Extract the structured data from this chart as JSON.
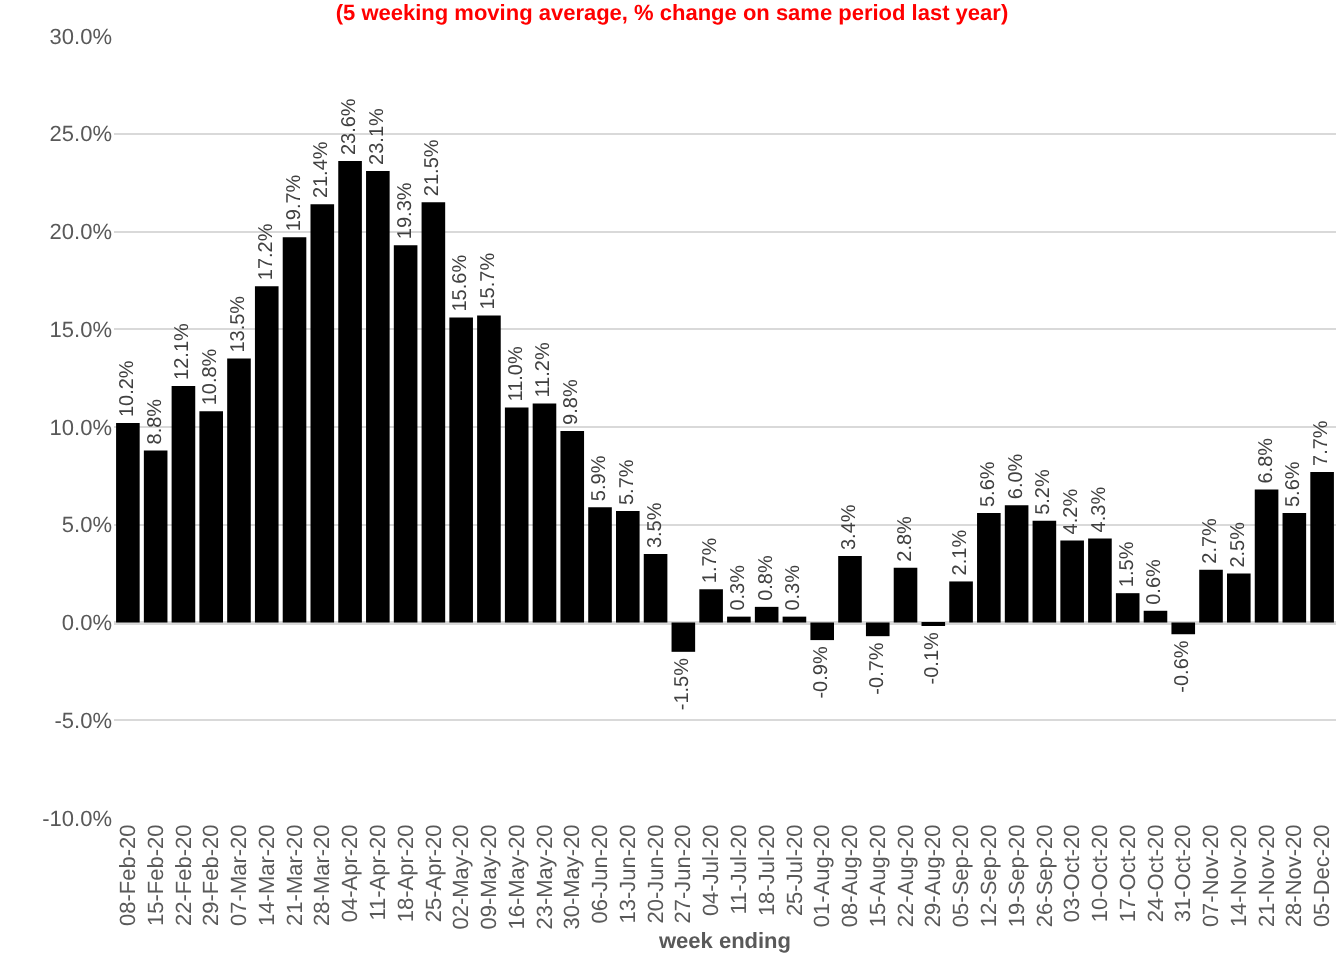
{
  "chart_data": {
    "type": "bar",
    "title": "(5 weeking moving average, % change on same period last year)",
    "xlabel": "week ending",
    "categories": [
      "08-Feb-20",
      "15-Feb-20",
      "22-Feb-20",
      "29-Feb-20",
      "07-Mar-20",
      "14-Mar-20",
      "21-Mar-20",
      "28-Mar-20",
      "04-Apr-20",
      "11-Apr-20",
      "18-Apr-20",
      "25-Apr-20",
      "02-May-20",
      "09-May-20",
      "16-May-20",
      "23-May-20",
      "30-May-20",
      "06-Jun-20",
      "13-Jun-20",
      "20-Jun-20",
      "27-Jun-20",
      "04-Jul-20",
      "11-Jul-20",
      "18-Jul-20",
      "25-Jul-20",
      "01-Aug-20",
      "08-Aug-20",
      "15-Aug-20",
      "22-Aug-20",
      "29-Aug-20",
      "05-Sep-20",
      "12-Sep-20",
      "19-Sep-20",
      "26-Sep-20",
      "03-Oct-20",
      "10-Oct-20",
      "17-Oct-20",
      "24-Oct-20",
      "31-Oct-20",
      "07-Nov-20",
      "14-Nov-20",
      "21-Nov-20",
      "28-Nov-20",
      "05-Dec-20"
    ],
    "values": [
      10.2,
      8.8,
      12.1,
      10.8,
      13.5,
      17.2,
      19.7,
      21.4,
      23.6,
      23.1,
      19.3,
      21.5,
      15.6,
      15.7,
      11.0,
      11.2,
      9.8,
      5.9,
      5.7,
      3.5,
      -1.5,
      1.7,
      0.3,
      0.8,
      0.3,
      -0.9,
      3.4,
      -0.7,
      2.8,
      -0.1,
      2.1,
      5.6,
      6.0,
      5.2,
      4.2,
      4.3,
      1.5,
      0.6,
      -0.6,
      2.7,
      2.5,
      6.8,
      5.6,
      7.7
    ],
    "value_labels": [
      "10.2%",
      "8.8%",
      "12.1%",
      "10.8%",
      "13.5%",
      "17.2%",
      "19.7%",
      "21.4%",
      "23.6%",
      "23.1%",
      "19.3%",
      "21.5%",
      "15.6%",
      "15.7%",
      "11.0%",
      "11.2%",
      "9.8%",
      "5.9%",
      "5.7%",
      "3.5%",
      "-1.5%",
      "1.7%",
      "0.3%",
      "0.8%",
      "0.3%",
      "-0.9%",
      "3.4%",
      "-0.7%",
      "2.8%",
      "-0.1%",
      "2.1%",
      "5.6%",
      "6.0%",
      "5.2%",
      "4.2%",
      "4.3%",
      "1.5%",
      "0.6%",
      "-0.6%",
      "2.7%",
      "2.5%",
      "6.8%",
      "5.6%",
      "7.7%"
    ],
    "color": "#000000",
    "ylim": [
      -10,
      30
    ],
    "yticks": [
      {
        "value": -10,
        "label": "-10.0%"
      },
      {
        "value": -5,
        "label": "-5.0%"
      },
      {
        "value": 0,
        "label": "0.0%"
      },
      {
        "value": 5,
        "label": "5.0%"
      },
      {
        "value": 10,
        "label": "10.0%"
      },
      {
        "value": 15,
        "label": "15.0%"
      },
      {
        "value": 20,
        "label": "20.0%"
      },
      {
        "value": 25,
        "label": "25.0%"
      },
      {
        "value": 30,
        "label": "30.0%"
      }
    ],
    "grid": "y"
  }
}
